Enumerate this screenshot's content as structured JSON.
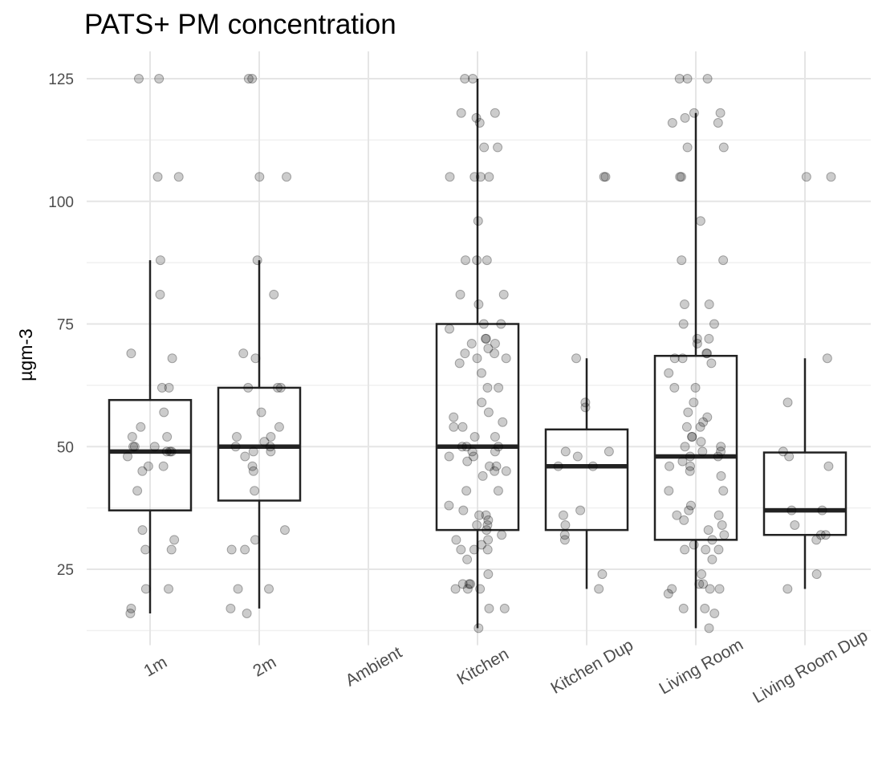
{
  "chart_data": {
    "type": "box",
    "title": "PATS+ PM concentration",
    "xlabel": "",
    "ylabel": "µgm-3",
    "ylim": [
      10.5,
      130
    ],
    "y_ticks": [
      25,
      50,
      75,
      100,
      125
    ],
    "y_minor_ticks": [
      12.5,
      37.5,
      62.5,
      87.5,
      112.5
    ],
    "grid": true,
    "categories": [
      "1m",
      "2m",
      "Ambient",
      "Kitchen",
      "Kitchen Dup",
      "Living Room",
      "Living Room Dup"
    ],
    "boxes": [
      {
        "category": "1m",
        "whisker_low": 16,
        "q1": 37,
        "median": 49,
        "q3": 59.5,
        "whisker_high": 88
      },
      {
        "category": "2m",
        "whisker_low": 17,
        "q1": 39,
        "median": 50,
        "q3": 62,
        "whisker_high": 88
      },
      {
        "category": "Kitchen",
        "whisker_low": 13,
        "q1": 33,
        "median": 50,
        "q3": 75,
        "whisker_high": 125
      },
      {
        "category": "Kitchen Dup",
        "whisker_low": 21,
        "q1": 33,
        "median": 46,
        "q3": 53.5,
        "whisker_high": 68
      },
      {
        "category": "Living Room",
        "whisker_low": 13,
        "q1": 31,
        "median": 48,
        "q3": 68.5,
        "whisker_high": 118
      },
      {
        "category": "Living Room Dup",
        "whisker_low": 21,
        "q1": 32,
        "median": 37,
        "q3": 48.8,
        "whisker_high": 68
      }
    ],
    "points": {
      "1m": [
        125,
        125,
        105,
        105,
        88,
        81,
        69,
        68,
        62,
        62,
        57,
        54,
        52,
        52,
        50,
        50,
        50,
        49,
        49,
        49,
        48,
        46,
        46,
        45,
        41,
        33,
        31,
        29,
        29,
        21,
        21,
        17,
        16
      ],
      "2m": [
        125,
        125,
        105,
        105,
        88,
        81,
        69,
        68,
        62,
        62,
        62,
        57,
        54,
        52,
        52,
        51,
        50,
        50,
        49,
        49,
        48,
        46,
        45,
        41,
        33,
        31,
        29,
        29,
        21,
        21,
        17,
        16
      ],
      "Ambient": [],
      "Kitchen": [
        125,
        125,
        118,
        118,
        117,
        116,
        111,
        111,
        105,
        105,
        105,
        105,
        96,
        88,
        88,
        88,
        81,
        81,
        79,
        75,
        75,
        74,
        72,
        72,
        71,
        71,
        70,
        69,
        69,
        68,
        68,
        67,
        65,
        62,
        62,
        59,
        57,
        56,
        55,
        54,
        54,
        52,
        52,
        50,
        50,
        50,
        49,
        49,
        48,
        48,
        47,
        46,
        46,
        45,
        45,
        44,
        41,
        41,
        38,
        37,
        36,
        36,
        35,
        34,
        34,
        33,
        32,
        31,
        31,
        30,
        29,
        29,
        29,
        27,
        24,
        22,
        22,
        22,
        21,
        21,
        21,
        17,
        17,
        13
      ],
      "Kitchen Dup": [
        105,
        105,
        68,
        59,
        58,
        49,
        49,
        48,
        46,
        46,
        37,
        36,
        34,
        32,
        31,
        24,
        21
      ],
      "Living Room": [
        125,
        125,
        125,
        118,
        118,
        117,
        116,
        116,
        111,
        111,
        105,
        105,
        96,
        88,
        88,
        79,
        79,
        75,
        75,
        72,
        72,
        71,
        69,
        69,
        68,
        68,
        67,
        65,
        62,
        62,
        59,
        57,
        56,
        55,
        54,
        54,
        52,
        52,
        51,
        50,
        50,
        49,
        49,
        48,
        48,
        47,
        46,
        46,
        45,
        44,
        41,
        41,
        38,
        37,
        36,
        36,
        35,
        34,
        33,
        32,
        31,
        30,
        29,
        29,
        29,
        27,
        24,
        22,
        22,
        21,
        21,
        21,
        20,
        17,
        17,
        16,
        13
      ],
      "Living Room Dup": [
        105,
        105,
        68,
        59,
        49,
        48,
        46,
        37,
        37,
        34,
        32,
        32,
        31,
        24,
        21
      ]
    },
    "colors": {
      "background": "#ffffff",
      "grid_major": "#e5e5e5",
      "grid_minor": "#f0f0f0",
      "box_stroke": "#222222",
      "point_fill": "#000000",
      "text": "#000000",
      "tick_text": "#4d4d4d"
    }
  }
}
